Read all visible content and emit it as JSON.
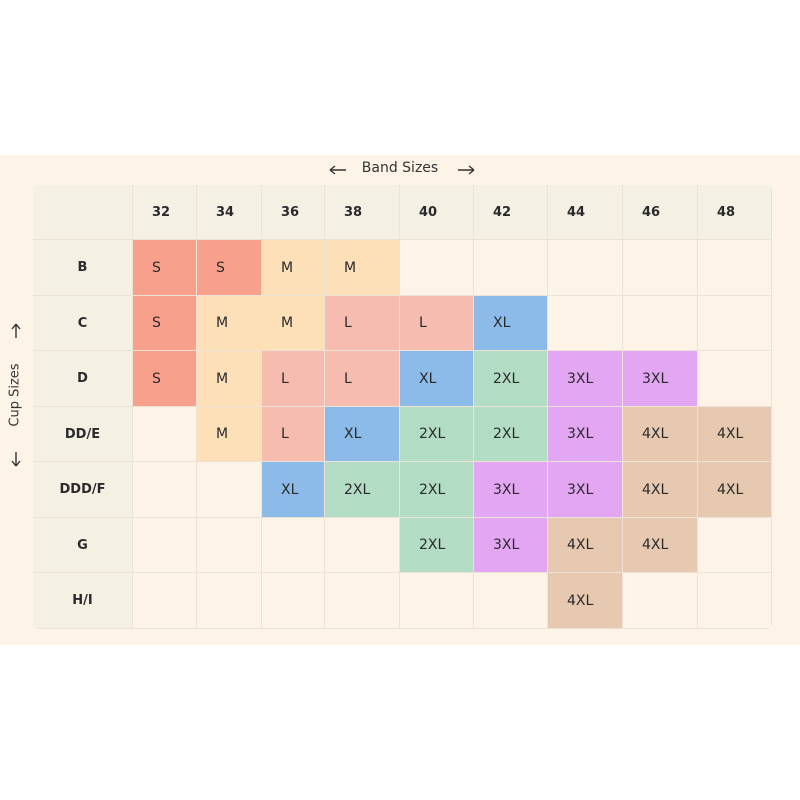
{
  "table": {
    "column_title": "Band Sizes",
    "row_title": "Cup Sizes",
    "columns": [
      "32",
      "34",
      "36",
      "38",
      "40",
      "42",
      "44",
      "46",
      "48"
    ],
    "rows": [
      {
        "label": "B",
        "cells": [
          "S",
          "S",
          "M",
          "M",
          null,
          null,
          null,
          null,
          null
        ]
      },
      {
        "label": "C",
        "cells": [
          "S",
          "M",
          "M",
          "L",
          "L",
          "XL",
          null,
          null,
          null
        ]
      },
      {
        "label": "D",
        "cells": [
          "S",
          "M",
          "L",
          "L",
          "XL",
          "2XL",
          "3XL",
          "3XL",
          null
        ]
      },
      {
        "label": "DD/E",
        "cells": [
          null,
          "M",
          "L",
          "XL",
          "2XL",
          "2XL",
          "3XL",
          "4XL",
          "4XL"
        ]
      },
      {
        "label": "DDD/F",
        "cells": [
          null,
          null,
          "XL",
          "2XL",
          "2XL",
          "3XL",
          "3XL",
          "4XL",
          "4XL"
        ]
      },
      {
        "label": "G",
        "cells": [
          null,
          null,
          null,
          null,
          "2XL",
          "3XL",
          "4XL",
          "4XL",
          null
        ]
      },
      {
        "label": "H/I",
        "cells": [
          null,
          null,
          null,
          null,
          null,
          null,
          "4XL",
          null,
          null
        ]
      }
    ],
    "size_colors": {
      "S": "#f7a08c",
      "M": "#fde0b8",
      "L": "#f6bcb0",
      "XL": "#8cbbea",
      "2XL": "#b3dcc5",
      "3XL": "#e3a6f2",
      "4XL": "#e6c9b0"
    }
  }
}
